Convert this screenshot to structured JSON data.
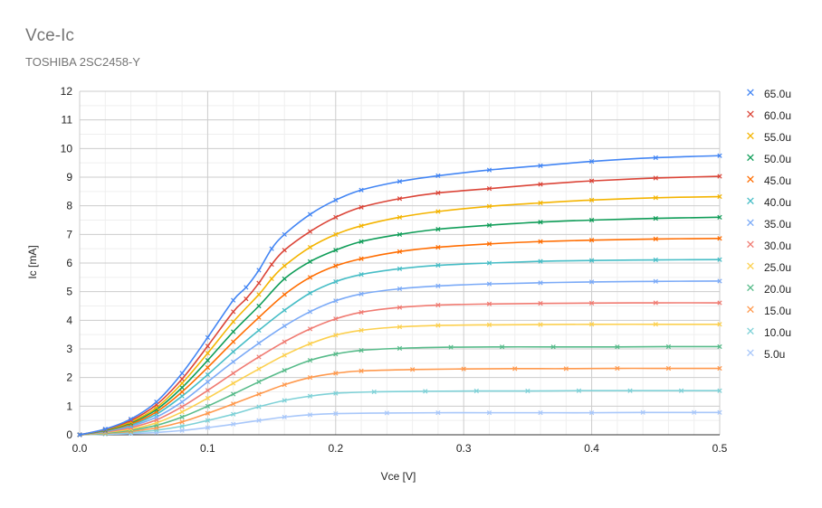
{
  "chart_data": {
    "type": "scatter",
    "title": "Vce-Ic",
    "subtitle": "TOSHIBA 2SC2458-Y",
    "xlabel": "Vce [V]",
    "ylabel": "Ic [mA]",
    "xlim": [
      0,
      0.5
    ],
    "ylim": [
      0,
      12
    ],
    "x_ticks": [
      "0.0",
      "0.1",
      "0.2",
      "0.3",
      "0.4",
      "0.5"
    ],
    "y_ticks": [
      "0",
      "1",
      "2",
      "3",
      "4",
      "5",
      "6",
      "7",
      "8",
      "9",
      "10",
      "11",
      "12"
    ],
    "grid": true,
    "legend_position": "right",
    "marker": "x",
    "series": [
      {
        "name": "65.0u",
        "color": "#4285f4",
        "x": [
          0,
          0.02,
          0.04,
          0.06,
          0.08,
          0.1,
          0.12,
          0.13,
          0.14,
          0.15,
          0.16,
          0.18,
          0.2,
          0.22,
          0.25,
          0.28,
          0.32,
          0.36,
          0.4,
          0.45,
          0.5
        ],
        "y": [
          0,
          0.2,
          0.55,
          1.15,
          2.15,
          3.4,
          4.7,
          5.15,
          5.75,
          6.5,
          7.0,
          7.7,
          8.2,
          8.55,
          8.85,
          9.05,
          9.25,
          9.4,
          9.55,
          9.68,
          9.75
        ]
      },
      {
        "name": "60.0u",
        "color": "#db4437",
        "x": [
          0,
          0.02,
          0.04,
          0.06,
          0.08,
          0.1,
          0.12,
          0.13,
          0.14,
          0.15,
          0.16,
          0.18,
          0.2,
          0.22,
          0.25,
          0.28,
          0.32,
          0.36,
          0.4,
          0.45,
          0.5
        ],
        "y": [
          0,
          0.19,
          0.5,
          1.05,
          1.95,
          3.1,
          4.3,
          4.75,
          5.3,
          5.95,
          6.45,
          7.1,
          7.6,
          7.95,
          8.25,
          8.45,
          8.6,
          8.75,
          8.87,
          8.97,
          9.03
        ]
      },
      {
        "name": "55.0u",
        "color": "#f4b400",
        "x": [
          0,
          0.02,
          0.04,
          0.06,
          0.08,
          0.1,
          0.12,
          0.14,
          0.15,
          0.16,
          0.18,
          0.2,
          0.22,
          0.25,
          0.28,
          0.32,
          0.36,
          0.4,
          0.45,
          0.5
        ],
        "y": [
          0,
          0.18,
          0.45,
          0.95,
          1.8,
          2.85,
          3.95,
          4.9,
          5.45,
          5.9,
          6.55,
          7.0,
          7.3,
          7.6,
          7.8,
          7.98,
          8.1,
          8.2,
          8.28,
          8.32
        ]
      },
      {
        "name": "50.0u",
        "color": "#0f9d58",
        "x": [
          0,
          0.02,
          0.04,
          0.06,
          0.08,
          0.1,
          0.12,
          0.14,
          0.16,
          0.18,
          0.2,
          0.22,
          0.25,
          0.28,
          0.32,
          0.36,
          0.4,
          0.45,
          0.5
        ],
        "y": [
          0,
          0.16,
          0.42,
          0.88,
          1.65,
          2.6,
          3.6,
          4.5,
          5.45,
          6.05,
          6.45,
          6.75,
          7.0,
          7.18,
          7.32,
          7.43,
          7.5,
          7.56,
          7.6
        ]
      },
      {
        "name": "45.0u",
        "color": "#ff6d01",
        "x": [
          0,
          0.02,
          0.04,
          0.06,
          0.08,
          0.1,
          0.12,
          0.14,
          0.16,
          0.18,
          0.2,
          0.22,
          0.25,
          0.28,
          0.32,
          0.36,
          0.4,
          0.45,
          0.5
        ],
        "y": [
          0,
          0.15,
          0.38,
          0.8,
          1.5,
          2.35,
          3.25,
          4.1,
          4.9,
          5.5,
          5.9,
          6.15,
          6.4,
          6.55,
          6.67,
          6.75,
          6.8,
          6.84,
          6.86
        ]
      },
      {
        "name": "40.0u",
        "color": "#46bdc6",
        "x": [
          0,
          0.02,
          0.04,
          0.06,
          0.08,
          0.1,
          0.12,
          0.14,
          0.16,
          0.18,
          0.2,
          0.22,
          0.25,
          0.28,
          0.32,
          0.36,
          0.4,
          0.45,
          0.5
        ],
        "y": [
          0,
          0.14,
          0.34,
          0.72,
          1.35,
          2.1,
          2.9,
          3.65,
          4.35,
          4.95,
          5.35,
          5.6,
          5.8,
          5.92,
          6.0,
          6.06,
          6.09,
          6.11,
          6.12
        ]
      },
      {
        "name": "35.0u",
        "color": "#7baaf7",
        "x": [
          0,
          0.02,
          0.04,
          0.06,
          0.08,
          0.1,
          0.12,
          0.14,
          0.16,
          0.18,
          0.2,
          0.22,
          0.25,
          0.28,
          0.32,
          0.36,
          0.4,
          0.45,
          0.5
        ],
        "y": [
          0,
          0.12,
          0.3,
          0.62,
          1.15,
          1.85,
          2.55,
          3.2,
          3.8,
          4.3,
          4.68,
          4.92,
          5.1,
          5.2,
          5.27,
          5.31,
          5.34,
          5.36,
          5.37
        ]
      },
      {
        "name": "30.0u",
        "color": "#f07b72",
        "x": [
          0,
          0.02,
          0.04,
          0.06,
          0.08,
          0.1,
          0.12,
          0.14,
          0.16,
          0.18,
          0.2,
          0.22,
          0.25,
          0.28,
          0.32,
          0.36,
          0.4,
          0.45,
          0.5
        ],
        "y": [
          0,
          0.1,
          0.25,
          0.52,
          0.98,
          1.55,
          2.15,
          2.72,
          3.25,
          3.7,
          4.05,
          4.28,
          4.45,
          4.53,
          4.57,
          4.59,
          4.6,
          4.61,
          4.61
        ]
      },
      {
        "name": "25.0u",
        "color": "#fcd04f",
        "x": [
          0,
          0.02,
          0.04,
          0.06,
          0.08,
          0.1,
          0.12,
          0.14,
          0.16,
          0.18,
          0.2,
          0.22,
          0.25,
          0.28,
          0.32,
          0.36,
          0.4,
          0.45,
          0.5
        ],
        "y": [
          0,
          0.08,
          0.2,
          0.42,
          0.8,
          1.28,
          1.8,
          2.3,
          2.78,
          3.18,
          3.48,
          3.65,
          3.77,
          3.82,
          3.84,
          3.85,
          3.86,
          3.86,
          3.86
        ]
      },
      {
        "name": "20.0u",
        "color": "#57bb8a",
        "x": [
          0,
          0.02,
          0.04,
          0.06,
          0.08,
          0.1,
          0.12,
          0.14,
          0.16,
          0.18,
          0.2,
          0.22,
          0.25,
          0.29,
          0.33,
          0.37,
          0.42,
          0.46,
          0.5
        ],
        "y": [
          0,
          0.06,
          0.16,
          0.33,
          0.62,
          1.0,
          1.42,
          1.85,
          2.25,
          2.6,
          2.82,
          2.95,
          3.02,
          3.06,
          3.07,
          3.07,
          3.07,
          3.08,
          3.08
        ]
      },
      {
        "name": "15.0u",
        "color": "#ff994d",
        "x": [
          0,
          0.02,
          0.04,
          0.06,
          0.08,
          0.1,
          0.12,
          0.14,
          0.16,
          0.18,
          0.2,
          0.22,
          0.26,
          0.3,
          0.34,
          0.38,
          0.42,
          0.46,
          0.5
        ],
        "y": [
          0,
          0.05,
          0.12,
          0.24,
          0.45,
          0.75,
          1.08,
          1.42,
          1.75,
          2.0,
          2.15,
          2.23,
          2.28,
          2.3,
          2.31,
          2.31,
          2.32,
          2.32,
          2.32
        ]
      },
      {
        "name": "10.0u",
        "color": "#7ed1d7",
        "x": [
          0,
          0.02,
          0.04,
          0.06,
          0.08,
          0.1,
          0.12,
          0.14,
          0.16,
          0.18,
          0.2,
          0.23,
          0.27,
          0.31,
          0.35,
          0.39,
          0.43,
          0.47,
          0.5
        ],
        "y": [
          0,
          0.03,
          0.08,
          0.16,
          0.3,
          0.5,
          0.72,
          0.98,
          1.2,
          1.35,
          1.45,
          1.5,
          1.52,
          1.53,
          1.53,
          1.54,
          1.54,
          1.54,
          1.54
        ]
      },
      {
        "name": "5.0u",
        "color": "#a8c7fa",
        "x": [
          0,
          0.02,
          0.04,
          0.06,
          0.08,
          0.1,
          0.12,
          0.14,
          0.16,
          0.18,
          0.2,
          0.24,
          0.28,
          0.32,
          0.36,
          0.4,
          0.44,
          0.48,
          0.5
        ],
        "y": [
          0,
          0.02,
          0.04,
          0.08,
          0.15,
          0.25,
          0.37,
          0.5,
          0.62,
          0.7,
          0.74,
          0.76,
          0.77,
          0.77,
          0.77,
          0.77,
          0.78,
          0.78,
          0.78
        ]
      }
    ]
  }
}
